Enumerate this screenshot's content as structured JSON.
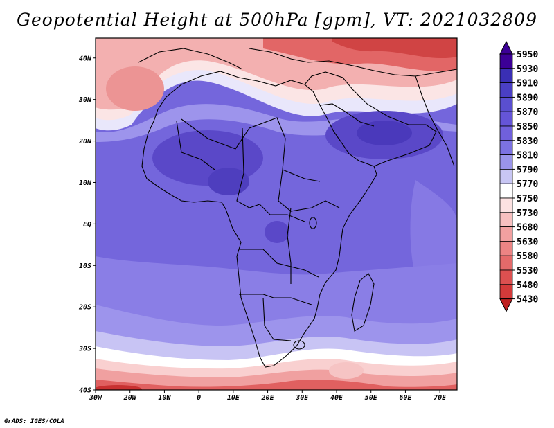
{
  "title": "Geopotential Height at 500hPa [gpm], VT: 2021032809",
  "credit": "GrADS: IGES/COLA",
  "map": {
    "x_ticks": [
      "30W",
      "20W",
      "10W",
      "0",
      "10E",
      "20E",
      "30E",
      "40E",
      "50E",
      "60E",
      "70E"
    ],
    "y_ticks": [
      "40N",
      "30N",
      "20N",
      "10N",
      "EQ",
      "10S",
      "20S",
      "30S",
      "40S"
    ]
  },
  "colorbar": {
    "levels": [
      "5950",
      "5930",
      "5910",
      "5890",
      "5870",
      "5850",
      "5830",
      "5810",
      "5790",
      "5770",
      "5750",
      "5730",
      "5680",
      "5630",
      "5580",
      "5530",
      "5480",
      "5430"
    ],
    "colors": [
      "#3c0096",
      "#3a2fb4",
      "#4a3fc4",
      "#5a4fd0",
      "#6555d8",
      "#7060dc",
      "#7c72e2",
      "#9a94ea",
      "#c8c6f4",
      "#ffffff",
      "#fde2e2",
      "#f8c0c0",
      "#f2a0a0",
      "#ec8484",
      "#e46a6a",
      "#dc5050",
      "#d43a3a",
      "#bf2020"
    ]
  },
  "colors": {
    "deep_blue": "#5c48cc",
    "mid_blue": "#7768e0",
    "light_blue": "#9d94ec",
    "pale": "#e8e6fa",
    "light_red": "#f3b0b0",
    "red": "#e26666",
    "dark_red": "#c83030"
  }
}
